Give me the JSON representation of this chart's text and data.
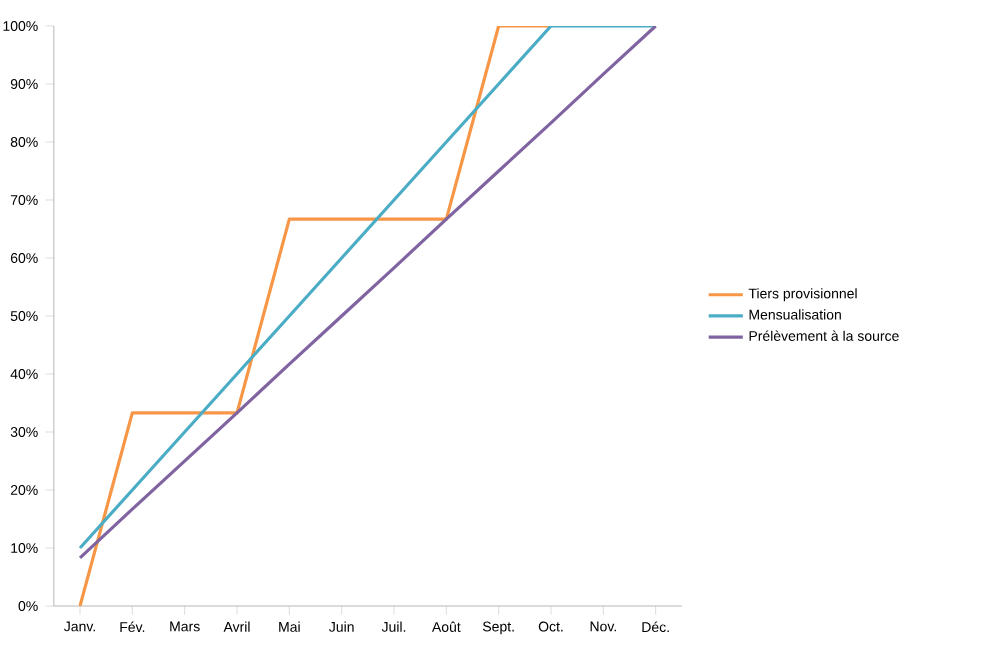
{
  "chart_data": {
    "type": "line",
    "categories": [
      "Janv.",
      "Fév.",
      "Mars",
      "Avril",
      "Mai",
      "Juin",
      "Juil.",
      "Août",
      "Sept.",
      "Oct.",
      "Nov.",
      "Déc."
    ],
    "series": [
      {
        "name": "Tiers provisionnel",
        "color": "#f79646",
        "values": [
          0,
          33.3,
          33.3,
          33.3,
          66.7,
          66.7,
          66.7,
          66.7,
          100,
          100,
          null,
          null
        ]
      },
      {
        "name": "Mensualisation",
        "color": "#4bacc6",
        "values": [
          10,
          20,
          30,
          40,
          50,
          60,
          70,
          80,
          90,
          100,
          100,
          100
        ]
      },
      {
        "name": "Prélèvement à la source",
        "color": "#8064a2",
        "values": [
          8.3,
          16.7,
          25,
          33.3,
          41.7,
          50,
          58.3,
          66.7,
          75,
          83.3,
          91.7,
          100
        ]
      }
    ],
    "ylim": [
      0,
      100
    ],
    "yticks": [
      {
        "value": 0,
        "label": "0%"
      },
      {
        "value": 10,
        "label": "10%"
      },
      {
        "value": 20,
        "label": "20%"
      },
      {
        "value": 30,
        "label": "30%"
      },
      {
        "value": 40,
        "label": "40%"
      },
      {
        "value": 50,
        "label": "50%"
      },
      {
        "value": 60,
        "label": "60%"
      },
      {
        "value": 70,
        "label": "70%"
      },
      {
        "value": 80,
        "label": "80%"
      },
      {
        "value": 90,
        "label": "90%"
      },
      {
        "value": 100,
        "label": "100%"
      }
    ],
    "legend": "right",
    "marker": "none",
    "line_style": "solid"
  }
}
